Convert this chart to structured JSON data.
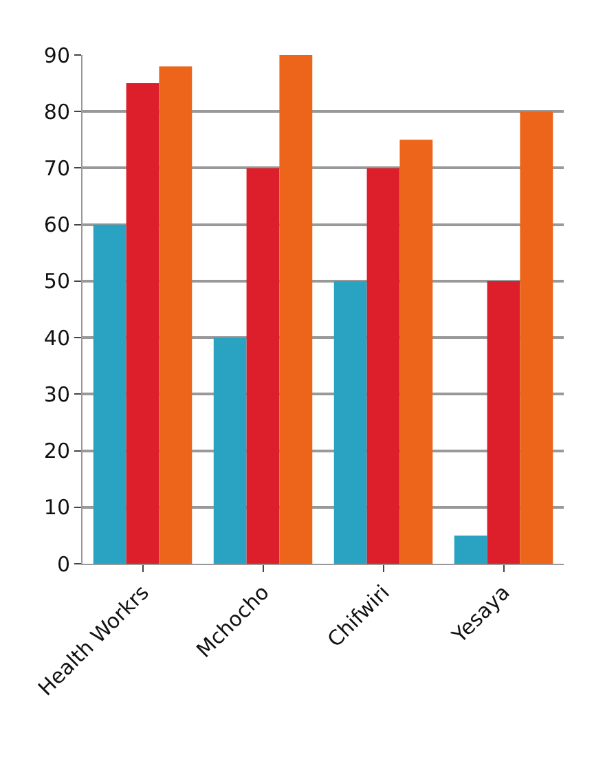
{
  "chart_data": {
    "type": "bar",
    "categories": [
      "Health Workrs",
      "Mchocho",
      "Chifwiri",
      "Yesaya"
    ],
    "series": [
      {
        "color": "#2aa3c2",
        "values": [
          60,
          40,
          50,
          5
        ]
      },
      {
        "color": "#dc1f2b",
        "values": [
          85,
          70,
          70,
          50
        ]
      },
      {
        "color": "#ec651a",
        "values": [
          88,
          90,
          75,
          80
        ]
      }
    ],
    "ylim": [
      0,
      90
    ],
    "yticks": [
      0,
      10,
      20,
      30,
      40,
      50,
      60,
      70,
      80,
      90
    ],
    "grid": "y"
  }
}
